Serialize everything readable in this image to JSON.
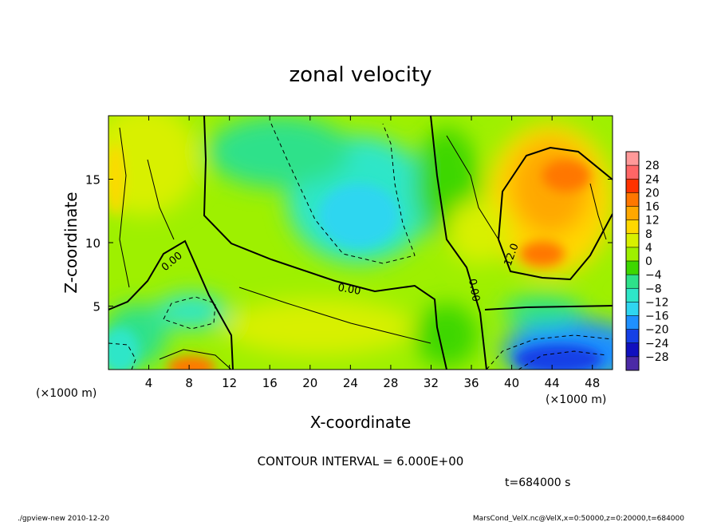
{
  "chart_data": {
    "type": "heatmap",
    "title": "zonal velocity",
    "xlabel": "X-coordinate",
    "ylabel": "Z-coordinate",
    "x_unit_label": "(×1000 m)",
    "x_unit_label_right": "(×1000 m)",
    "xlim": [
      0,
      50
    ],
    "ylim": [
      0,
      20
    ],
    "x_ticks": [
      4,
      8,
      12,
      16,
      20,
      24,
      28,
      32,
      36,
      40,
      44,
      48
    ],
    "y_ticks": [
      5,
      10,
      15
    ],
    "colorbar": {
      "labels": [
        "28",
        "24",
        "20",
        "16",
        "12",
        "8",
        "4",
        "0",
        "−4",
        "−8",
        "−12",
        "−16",
        "−20",
        "−24",
        "−28"
      ],
      "colors": [
        "#ff9999",
        "#ff6666",
        "#ff3300",
        "#ff7700",
        "#ffa800",
        "#ffd800",
        "#d8f000",
        "#9ef000",
        "#3ed700",
        "#2ee18a",
        "#2ee6c8",
        "#2fd6f0",
        "#1e90ff",
        "#1440e6",
        "#1010bf",
        "#4b2aa6"
      ]
    },
    "contour_labels": [
      "0.00",
      "0.00",
      "0.00",
      "12.0"
    ],
    "contour_interval_text": "CONTOUR INTERVAL = 6.000E+00",
    "time_text": "t=684000 s",
    "grid": false
  },
  "footer": {
    "left": "./gpview-new  2010-12-20",
    "right": "MarsCond_VelX.nc@VelX,x=0:50000,z=0:20000,t=684000"
  }
}
